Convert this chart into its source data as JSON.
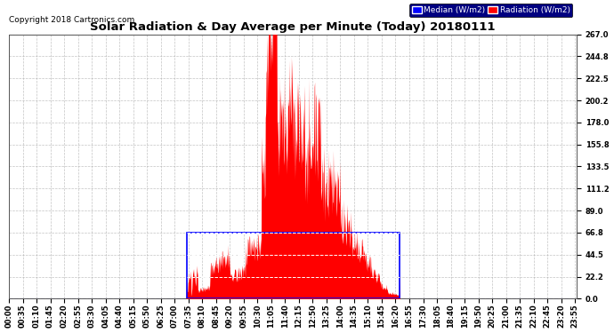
{
  "title": "Solar Radiation & Day Average per Minute (Today) 20180111",
  "copyright": "Copyright 2018 Cartronics.com",
  "yticks": [
    0.0,
    22.2,
    44.5,
    66.8,
    89.0,
    111.2,
    133.5,
    155.8,
    178.0,
    200.2,
    222.5,
    244.8,
    267.0
  ],
  "ymax": 267.0,
  "ymin": 0.0,
  "legend_median_label": "Median (W/m2)",
  "legend_radiation_label": "Radiation (W/m2)",
  "median_color": "#0000cc",
  "radiation_color": "#ff0000",
  "bg_color": "#ffffff",
  "plot_bg_color": "#ffffff",
  "grid_color": "#aaaaaa",
  "median_value": 66.8,
  "sunrise_min": 450,
  "sunset_min": 990,
  "title_fontsize": 9.5,
  "copyright_fontsize": 6.5,
  "tick_fontsize": 6,
  "legend_fontsize": 6.5,
  "tick_step_min": 35
}
